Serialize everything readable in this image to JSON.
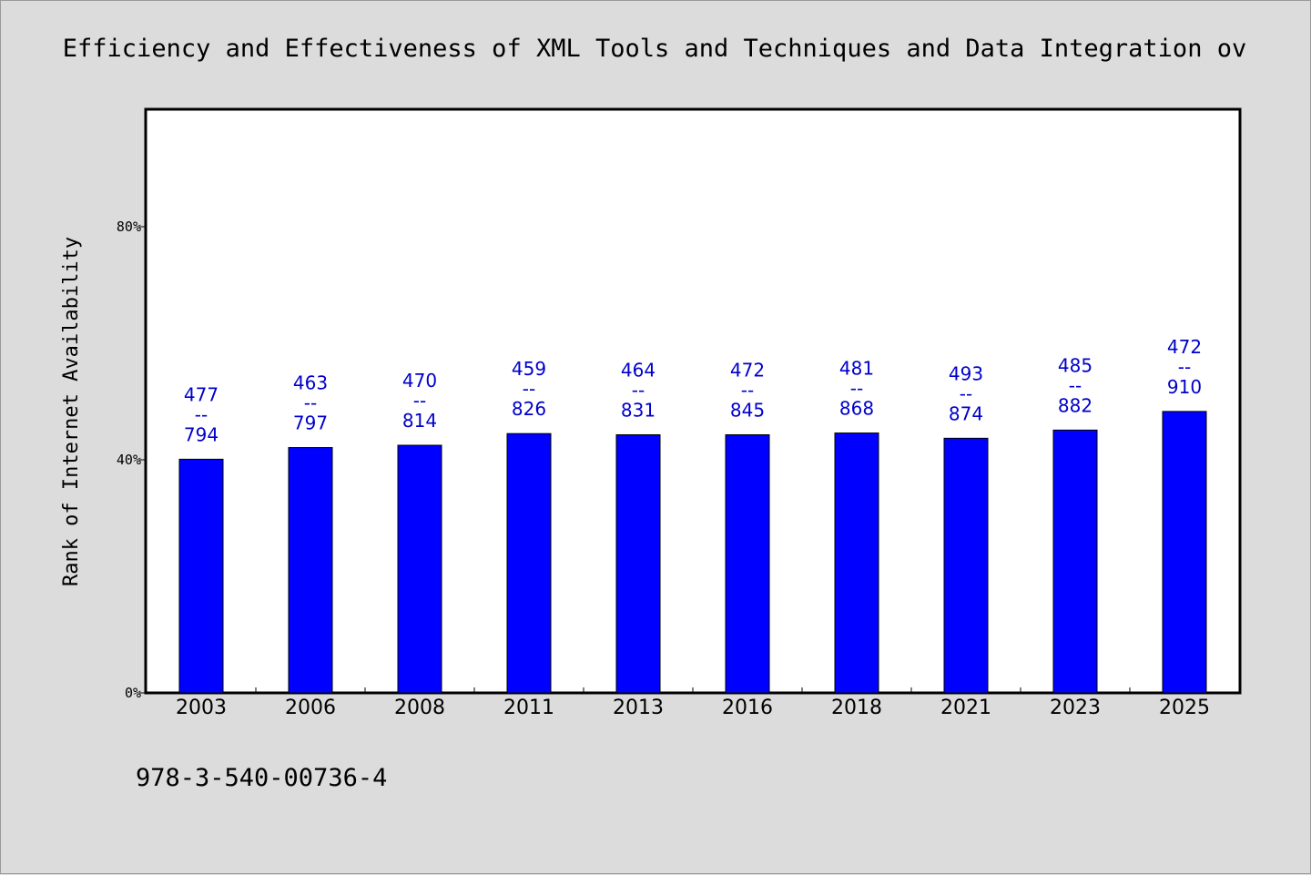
{
  "chart_data": {
    "type": "bar",
    "title": "Efficiency and Effectiveness of XML Tools and Techniques and Data Integration ov",
    "xlabel": "",
    "ylabel": "Rank of Internet Availability",
    "categories": [
      "2003",
      "2006",
      "2008",
      "2011",
      "2013",
      "2016",
      "2018",
      "2021",
      "2023",
      "2025"
    ],
    "values": [
      40.1,
      42.1,
      42.5,
      44.5,
      44.3,
      44.3,
      44.6,
      43.7,
      45.1,
      48.3
    ],
    "data_labels": [
      [
        "477",
        "--",
        "794"
      ],
      [
        "463",
        "--",
        "797"
      ],
      [
        "470",
        "--",
        "814"
      ],
      [
        "459",
        "--",
        "826"
      ],
      [
        "464",
        "--",
        "831"
      ],
      [
        "472",
        "--",
        "845"
      ],
      [
        "481",
        "--",
        "868"
      ],
      [
        "493",
        "--",
        "874"
      ],
      [
        "485",
        "--",
        "882"
      ],
      [
        "472",
        "--",
        "910"
      ]
    ],
    "ylim": [
      0,
      100
    ],
    "yticks": [
      0,
      40,
      80
    ],
    "ytick_labels": [
      "0%",
      "40%",
      "80%"
    ],
    "grid": false,
    "bar_color": "#0000ff",
    "label_color": "#0000cc"
  },
  "footer_text": "978-3-540-00736-4"
}
